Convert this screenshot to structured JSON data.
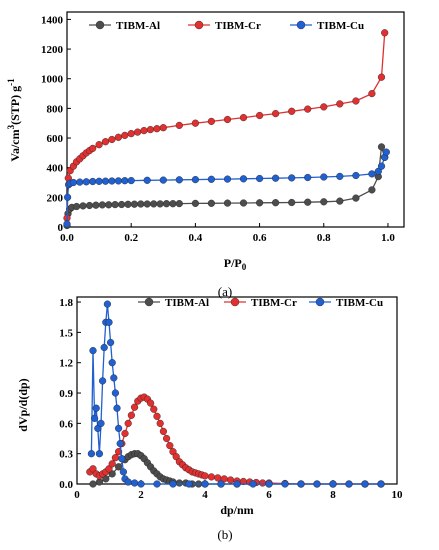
{
  "captions": {
    "a": "(a)",
    "b": "(b)"
  },
  "series_colors": {
    "TIBM-Al": "#4d4d4d",
    "TIBM-Cr": "#e03030",
    "TIBM-Cu": "#2060d0"
  },
  "chart_data": [
    {
      "type": "line",
      "xlabel": "P/P",
      "xlabel_sub": "0",
      "ylabel": "Va/cm",
      "ylabel_sup": "3",
      "ylabel_mid": "(STP) g",
      "ylabel_sup2": "-1",
      "xlim": [
        0,
        1.05
      ],
      "ylim": [
        0,
        1450
      ],
      "xticks": [
        "0.0",
        "0.2",
        "0.4",
        "0.6",
        "0.8",
        "1.0"
      ],
      "yticks": [
        "0",
        "200",
        "400",
        "600",
        "800",
        "1000",
        "1200",
        "1400"
      ],
      "legend_position": "top",
      "series": [
        {
          "name": "TIBM-Al",
          "color": "#4d4d4d",
          "x": [
            0.0,
            0.003,
            0.008,
            0.015,
            0.03,
            0.05,
            0.07,
            0.09,
            0.11,
            0.13,
            0.15,
            0.17,
            0.19,
            0.21,
            0.23,
            0.25,
            0.27,
            0.29,
            0.31,
            0.33,
            0.35,
            0.4,
            0.45,
            0.5,
            0.55,
            0.6,
            0.65,
            0.7,
            0.75,
            0.8,
            0.85,
            0.9,
            0.95,
            0.97,
            0.98,
            0.99
          ],
          "y": [
            10,
            90,
            120,
            132,
            138,
            142,
            145,
            147,
            149,
            150,
            151,
            152,
            153,
            154,
            155,
            155,
            156,
            156,
            157,
            157,
            158,
            159,
            160,
            161,
            162,
            163,
            164,
            165,
            167,
            170,
            175,
            195,
            250,
            340,
            540,
            470
          ]
        },
        {
          "name": "TIBM-Cr",
          "color": "#e03030",
          "x": [
            0.0,
            0.004,
            0.01,
            0.02,
            0.03,
            0.04,
            0.05,
            0.06,
            0.07,
            0.08,
            0.1,
            0.12,
            0.14,
            0.16,
            0.18,
            0.2,
            0.22,
            0.24,
            0.26,
            0.28,
            0.3,
            0.35,
            0.4,
            0.45,
            0.5,
            0.55,
            0.6,
            0.65,
            0.7,
            0.75,
            0.8,
            0.85,
            0.9,
            0.95,
            0.98,
            0.99
          ],
          "y": [
            60,
            330,
            380,
            410,
            440,
            460,
            480,
            500,
            515,
            530,
            555,
            575,
            590,
            605,
            618,
            630,
            640,
            650,
            657,
            663,
            670,
            685,
            700,
            712,
            725,
            738,
            752,
            765,
            780,
            795,
            810,
            830,
            850,
            900,
            1010,
            1310
          ]
        },
        {
          "name": "TIBM-Cu",
          "color": "#2060d0",
          "x": [
            0.0,
            0.002,
            0.005,
            0.01,
            0.02,
            0.04,
            0.06,
            0.08,
            0.1,
            0.12,
            0.14,
            0.16,
            0.18,
            0.2,
            0.25,
            0.3,
            0.35,
            0.4,
            0.45,
            0.5,
            0.55,
            0.6,
            0.65,
            0.7,
            0.75,
            0.8,
            0.85,
            0.9,
            0.95,
            0.97,
            0.98,
            0.99,
            0.995
          ],
          "y": [
            20,
            200,
            285,
            295,
            300,
            303,
            305,
            307,
            308,
            309,
            310,
            311,
            312,
            313,
            315,
            316,
            318,
            320,
            322,
            323,
            325,
            327,
            329,
            331,
            334,
            337,
            341,
            347,
            358,
            375,
            410,
            470,
            505
          ]
        }
      ]
    },
    {
      "type": "line",
      "xlabel": "dp/nm",
      "ylabel": "dVp/d(dp)",
      "xlim": [
        0,
        10
      ],
      "ylim": [
        0,
        1.85
      ],
      "xticks": [
        "0",
        "2",
        "4",
        "6",
        "8",
        "10"
      ],
      "yticks": [
        "0.0",
        "0.3",
        "0.6",
        "0.9",
        "1.2",
        "1.5",
        "1.8"
      ],
      "legend_position": "top",
      "series": [
        {
          "name": "TIBM-Al",
          "color": "#4d4d4d",
          "x": [
            0.5,
            0.7,
            0.9,
            1.1,
            1.3,
            1.5,
            1.6,
            1.7,
            1.8,
            1.9,
            2.0,
            2.1,
            2.2,
            2.3,
            2.4,
            2.5,
            2.6,
            2.7,
            2.8,
            2.9,
            3.0,
            3.2,
            3.4,
            3.6,
            3.8,
            4.0,
            4.5,
            5.0,
            6.0,
            7.0,
            8.0,
            9.0,
            9.5
          ],
          "y": [
            0.0,
            0.02,
            0.05,
            0.1,
            0.17,
            0.24,
            0.27,
            0.29,
            0.3,
            0.3,
            0.28,
            0.25,
            0.21,
            0.17,
            0.13,
            0.1,
            0.07,
            0.05,
            0.04,
            0.03,
            0.02,
            0.01,
            0.01,
            0.0,
            0.0,
            0.0,
            0.0,
            0.0,
            0.0,
            0.0,
            0.0,
            0.0,
            0.0
          ]
        },
        {
          "name": "TIBM-Cr",
          "color": "#e03030",
          "x": [
            0.4,
            0.5,
            0.6,
            0.7,
            0.8,
            0.9,
            1.0,
            1.1,
            1.2,
            1.3,
            1.4,
            1.5,
            1.6,
            1.7,
            1.8,
            1.9,
            2.0,
            2.1,
            2.2,
            2.3,
            2.4,
            2.5,
            2.6,
            2.7,
            2.8,
            2.9,
            3.0,
            3.1,
            3.2,
            3.3,
            3.4,
            3.5,
            3.6,
            3.7,
            3.8,
            3.9,
            4.0,
            4.2,
            4.4,
            4.6,
            4.8,
            5.0,
            5.2,
            5.4,
            5.6,
            5.8,
            6.0,
            6.5,
            7.0,
            7.5,
            8.0,
            8.5,
            9.0,
            9.5
          ],
          "y": [
            0.12,
            0.15,
            0.1,
            0.08,
            0.1,
            0.12,
            0.15,
            0.2,
            0.26,
            0.32,
            0.4,
            0.5,
            0.6,
            0.68,
            0.76,
            0.82,
            0.85,
            0.86,
            0.84,
            0.8,
            0.74,
            0.67,
            0.6,
            0.52,
            0.45,
            0.38,
            0.32,
            0.27,
            0.22,
            0.19,
            0.16,
            0.14,
            0.12,
            0.11,
            0.1,
            0.09,
            0.08,
            0.07,
            0.06,
            0.05,
            0.04,
            0.03,
            0.025,
            0.02,
            0.015,
            0.01,
            0.01,
            0.005,
            0.0,
            0.0,
            0.0,
            0.0,
            0.0,
            0.0
          ]
        },
        {
          "name": "TIBM-Cu",
          "color": "#2060d0",
          "x": [
            0.45,
            0.5,
            0.55,
            0.6,
            0.65,
            0.7,
            0.75,
            0.8,
            0.85,
            0.9,
            0.95,
            1.0,
            1.05,
            1.1,
            1.15,
            1.2,
            1.25,
            1.3,
            1.35,
            1.4,
            1.45,
            1.5,
            1.6,
            1.8,
            2.0,
            2.5,
            3.0,
            3.5,
            4.0,
            4.5,
            5.0,
            5.5,
            6.0,
            6.5,
            7.0,
            7.5,
            8.0,
            8.5,
            9.0,
            9.5
          ],
          "y": [
            0.3,
            1.32,
            0.65,
            0.75,
            0.55,
            0.3,
            0.6,
            1.02,
            1.35,
            1.6,
            1.78,
            1.6,
            1.4,
            1.2,
            1.05,
            0.9,
            0.75,
            0.55,
            0.4,
            0.25,
            0.12,
            0.05,
            0.02,
            0.01,
            0.0,
            0.0,
            0.0,
            0.0,
            0.0,
            0.0,
            0.0,
            0.0,
            0.0,
            0.0,
            0.0,
            0.0,
            0.0,
            0.0,
            0.0,
            0.0
          ]
        }
      ]
    }
  ]
}
